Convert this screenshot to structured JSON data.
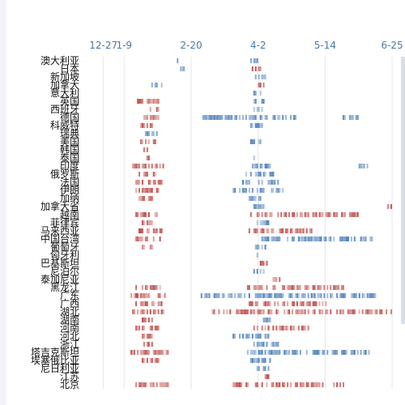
{
  "colors": {
    "accent": "#4a79a8",
    "warm": "#c0504d",
    "cool": "#4f81bd"
  },
  "chart_data": {
    "type": "scatter",
    "title": "",
    "xlabel": "",
    "ylabel": "",
    "x_ticks": [
      "12-27",
      "1-9",
      "2-20",
      "4-2",
      "5-14",
      "6-25"
    ],
    "x_tick_days": [
      0,
      13,
      55,
      97,
      139,
      181
    ],
    "xlim": [
      -10,
      183
    ],
    "grid": true,
    "rows": [
      {
        "name": "澳大利亚",
        "segments": [
          [
            46,
            48,
            "cool"
          ],
          [
            92,
            96,
            "cool"
          ]
        ]
      },
      {
        "name": "日本",
        "segments": [
          [
            47,
            52,
            "cool"
          ],
          [
            93,
            99,
            "warm"
          ]
        ]
      },
      {
        "name": "新加坡",
        "segments": [
          [
            95,
            101,
            "cool"
          ]
        ]
      },
      {
        "name": "加拿大",
        "segments": [
          [
            30,
            36,
            "cool"
          ],
          [
            96,
            100,
            "warm"
          ]
        ]
      },
      {
        "name": "意大利",
        "segments": [
          [
            94,
            98,
            "cool"
          ]
        ]
      },
      {
        "name": "英国",
        "segments": [
          [
            20,
            34,
            "warm"
          ],
          [
            94,
            100,
            "cool"
          ]
        ]
      },
      {
        "name": "西班牙",
        "segments": [
          [
            28,
            34,
            "warm"
          ],
          [
            94,
            100,
            "cool"
          ]
        ]
      },
      {
        "name": "德国",
        "segments": [
          [
            24,
            36,
            "warm"
          ],
          [
            60,
            120,
            "cool"
          ],
          [
            150,
            160,
            "cool"
          ]
        ]
      },
      {
        "name": "科威特",
        "segments": [
          [
            23,
            30,
            "warm"
          ],
          [
            92,
            100,
            "cool"
          ]
        ]
      },
      {
        "name": "瑞典",
        "segments": [
          [
            24,
            33,
            "cool"
          ]
        ]
      },
      {
        "name": "美国",
        "segments": [
          [
            22,
            32,
            "warm"
          ],
          [
            90,
            98,
            "cool"
          ]
        ]
      },
      {
        "name": "韩国",
        "segments": [
          [
            24,
            29,
            "warm"
          ]
        ]
      },
      {
        "name": "泰国",
        "segments": [
          [
            23,
            29,
            "warm"
          ],
          [
            94,
            100,
            "cool"
          ]
        ]
      },
      {
        "name": "印度",
        "segments": [
          [
            18,
            38,
            "warm"
          ],
          [
            92,
            104,
            "cool"
          ],
          [
            160,
            166,
            "cool"
          ]
        ]
      },
      {
        "name": "俄罗斯",
        "segments": [
          [
            22,
            34,
            "warm"
          ],
          [
            88,
            108,
            "cool"
          ]
        ]
      },
      {
        "name": "法国",
        "segments": [
          [
            20,
            36,
            "warm"
          ],
          [
            86,
            110,
            "cool"
          ]
        ]
      },
      {
        "name": "伊朗",
        "segments": [
          [
            20,
            34,
            "warm"
          ],
          [
            80,
            112,
            "cool"
          ]
        ]
      },
      {
        "name": "加纳",
        "segments": [
          [
            22,
            30,
            "warm"
          ],
          [
            90,
            100,
            "cool"
          ]
        ]
      },
      {
        "name": "加拿大省",
        "segments": [
          [
            92,
            100,
            "cool"
          ],
          [
            178,
            180,
            "warm"
          ]
        ]
      },
      {
        "name": "越南",
        "segments": [
          [
            20,
            33,
            "warm"
          ],
          [
            92,
            160,
            "warm"
          ]
        ]
      },
      {
        "name": "菲律宾",
        "segments": [
          [
            24,
            30,
            "warm"
          ],
          [
            94,
            104,
            "cool"
          ]
        ]
      },
      {
        "name": "马来西亚",
        "segments": [
          [
            22,
            36,
            "warm"
          ],
          [
            90,
            130,
            "warm"
          ]
        ]
      },
      {
        "name": "中国台湾",
        "segments": [
          [
            20,
            36,
            "warm"
          ],
          [
            92,
            170,
            "cool"
          ]
        ]
      },
      {
        "name": "葡萄牙",
        "segments": [
          [
            24,
            30,
            "warm"
          ],
          [
            94,
            102,
            "cool"
          ]
        ]
      },
      {
        "name": "匈牙利",
        "segments": [
          [
            96,
            102,
            "cool"
          ]
        ]
      },
      {
        "name": "巴基斯坦",
        "segments": [
          [
            98,
            104,
            "warm"
          ]
        ]
      },
      {
        "name": "尼泊尔",
        "segments": [
          [
            94,
            100,
            "cool"
          ]
        ]
      },
      {
        "name": "泰加尼亚",
        "segments": [
          [
            104,
            110,
            "warm"
          ]
        ]
      },
      {
        "name": "黑龙江",
        "segments": [
          [
            20,
            36,
            "warm"
          ],
          [
            90,
            150,
            "warm"
          ]
        ]
      },
      {
        "name": "广东",
        "segments": [
          [
            16,
            38,
            "warm"
          ],
          [
            60,
            170,
            "cool"
          ]
        ]
      },
      {
        "name": "广西",
        "segments": [
          [
            20,
            36,
            "warm"
          ],
          [
            90,
            140,
            "warm"
          ]
        ]
      },
      {
        "name": "湖北",
        "segments": [
          [
            18,
            40,
            "warm"
          ],
          [
            68,
            180,
            "warm"
          ]
        ]
      },
      {
        "name": "湖南",
        "segments": [
          [
            24,
            30,
            "warm"
          ],
          [
            100,
            104,
            "cool"
          ]
        ]
      },
      {
        "name": "河南",
        "segments": [
          [
            20,
            34,
            "warm"
          ],
          [
            94,
            130,
            "warm"
          ]
        ]
      },
      {
        "name": "河北",
        "segments": [
          [
            24,
            30,
            "warm"
          ],
          [
            80,
            104,
            "cool"
          ]
        ]
      },
      {
        "name": "浙江",
        "segments": [
          [
            24,
            30,
            "warm"
          ],
          [
            94,
            110,
            "cool"
          ]
        ]
      },
      {
        "name": "塔吉克斯坦",
        "segments": [
          [
            16,
            40,
            "warm"
          ],
          [
            90,
            170,
            "cool"
          ]
        ]
      },
      {
        "name": "埃塞俄比亚",
        "segments": [
          [
            22,
            34,
            "warm"
          ],
          [
            92,
            104,
            "cool"
          ]
        ]
      },
      {
        "name": "尼日利亚",
        "segments": [
          [
            96,
            104,
            "cool"
          ]
        ]
      },
      {
        "name": "江苏",
        "segments": [
          [
            100,
            104,
            "warm"
          ]
        ]
      },
      {
        "name": "北京",
        "segments": [
          [
            20,
            40,
            "warm"
          ],
          [
            80,
            150,
            "warm"
          ]
        ]
      }
    ],
    "visible_labels": [
      "澳大利亚",
      "日本",
      "新加坡",
      "加拿大",
      "科威特",
      "西班牙",
      "韩国",
      "美国",
      "加拿大",
      "巴基斯坦",
      "尼泊尔",
      "泰加尼亚",
      "黑龙江",
      "越南",
      "葡萄牙",
      "塔吉克斯坦",
      "埃塞俄比亚",
      "尼日利亚",
      "北京"
    ]
  }
}
